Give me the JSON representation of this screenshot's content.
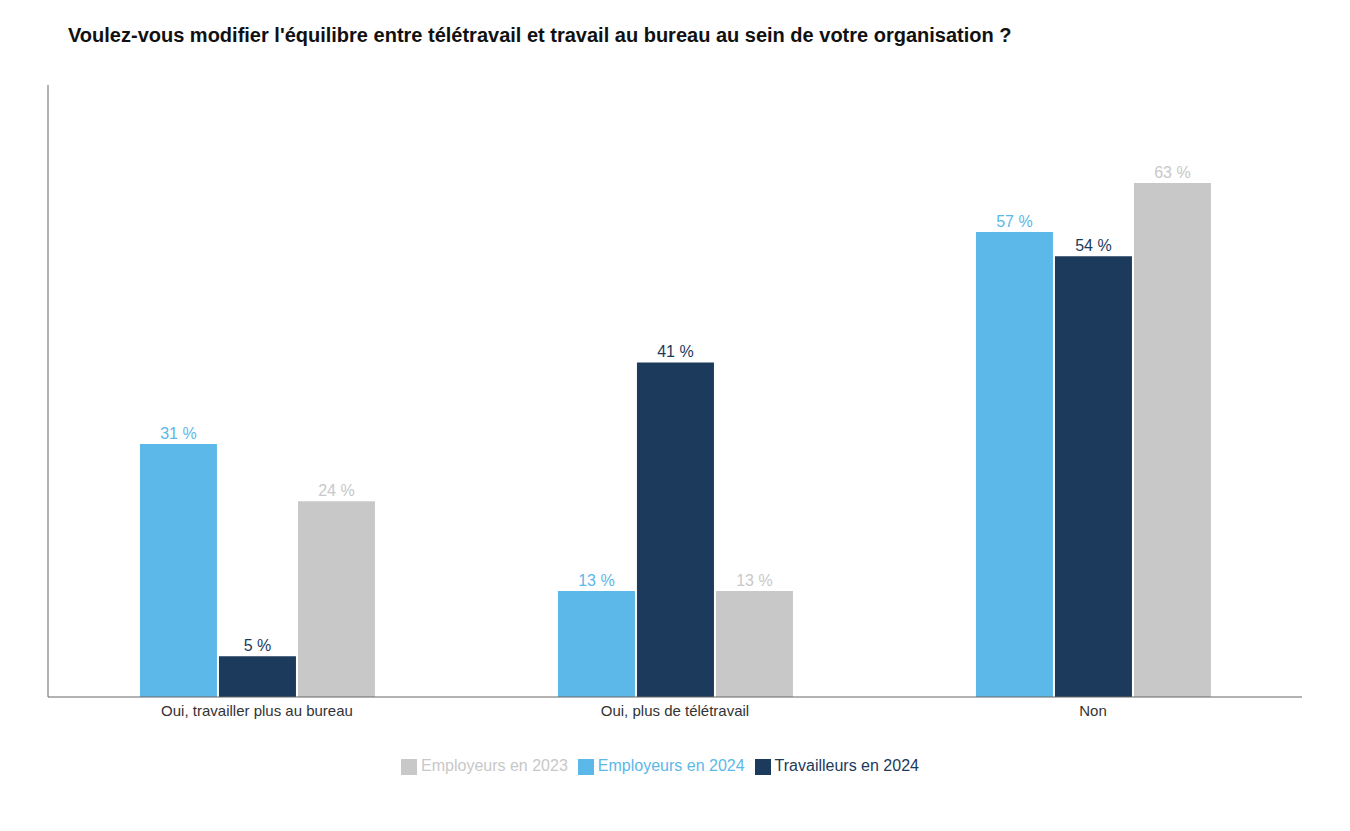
{
  "chart_data": {
    "type": "bar",
    "title": "Voulez-vous modifier l'équilibre entre télétravail et travail au bureau au sein de votre organisation ?",
    "categories": [
      "Oui, travailler plus au bureau",
      "Oui, plus de télétravail",
      "Non"
    ],
    "series": [
      {
        "name": "Employeurs en 2024",
        "color": "#5BB8E8",
        "values": [
          31,
          13,
          57
        ],
        "value_labels": [
          "31 %",
          "13 %",
          "57 %"
        ]
      },
      {
        "name": "Travailleurs en 2024",
        "color": "#1B3A5C",
        "values": [
          5,
          41,
          54
        ],
        "value_labels": [
          "5 %",
          "41 %",
          "54 %"
        ]
      },
      {
        "name": "Employeurs en 2023",
        "color": "#C8C8C8",
        "values": [
          24,
          13,
          63
        ],
        "value_labels": [
          "24 %",
          "13 %",
          "63 %"
        ]
      }
    ],
    "ylim": [
      0,
      75
    ],
    "grid": false,
    "legend": "bottom",
    "data_labels": true,
    "tick_labels": "x"
  }
}
